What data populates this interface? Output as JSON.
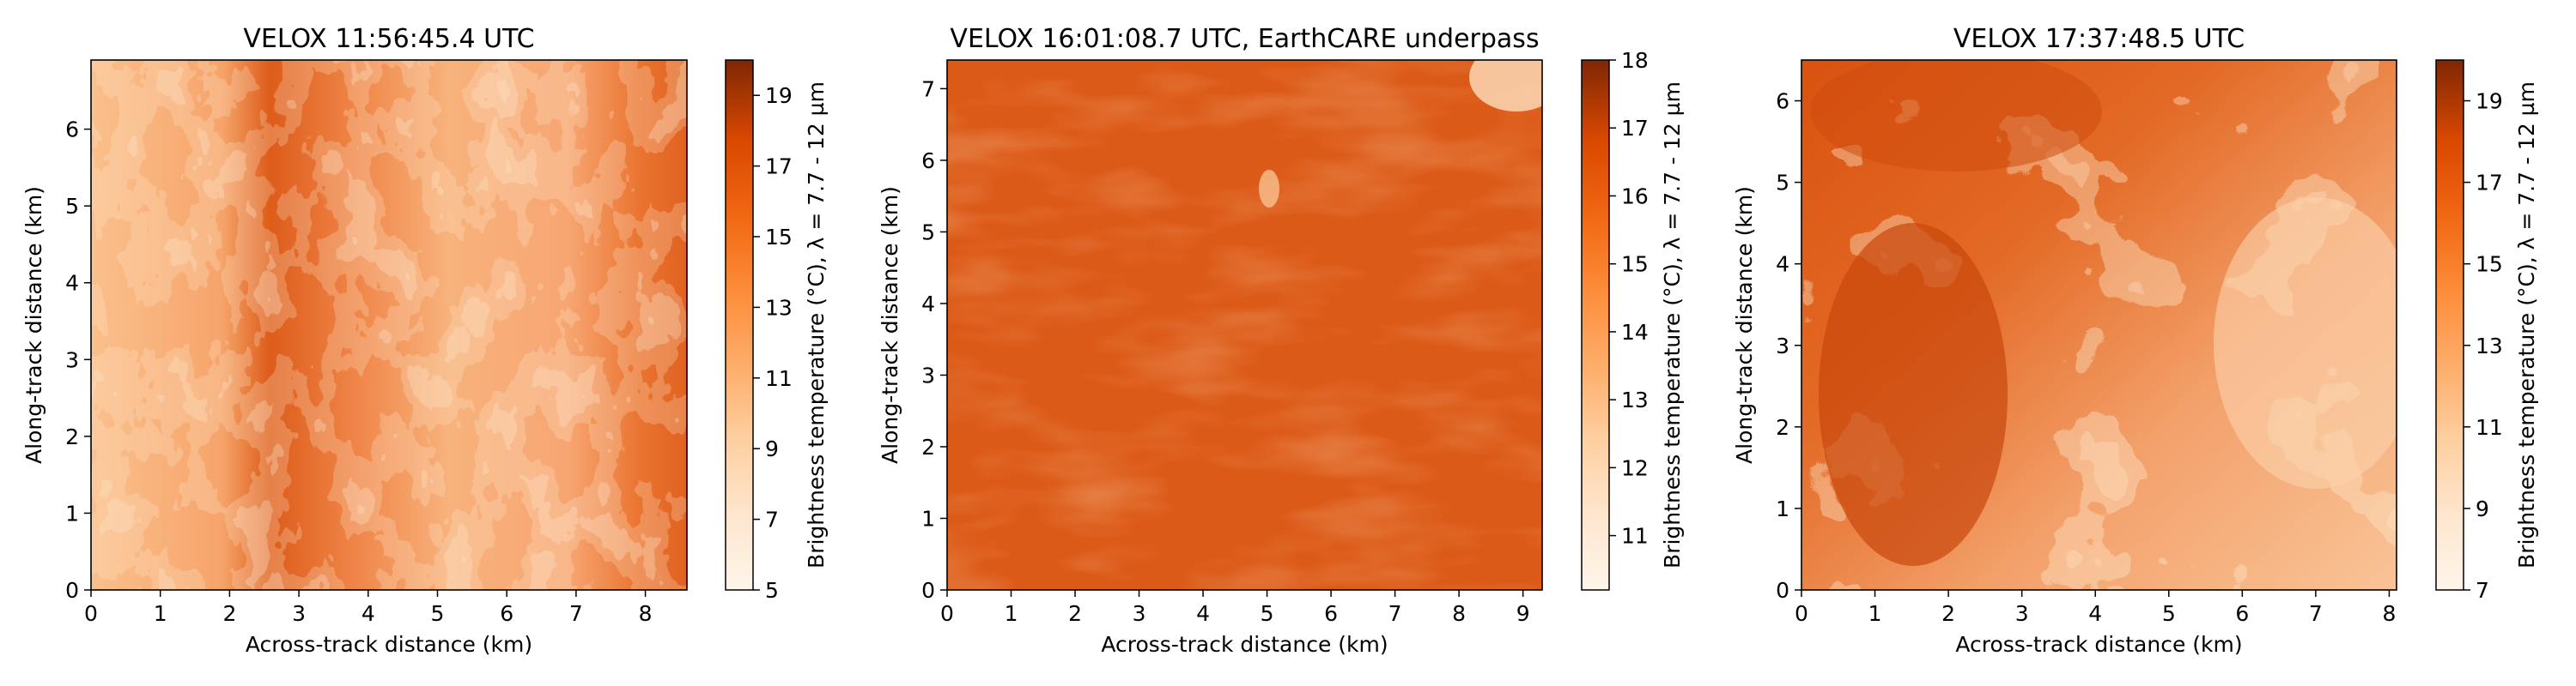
{
  "chart_data": [
    {
      "type": "heatmap",
      "title": "VELOX 11:56:45.4 UTC",
      "xlabel": "Across-track distance (km)",
      "ylabel": "Along-track distance (km)",
      "xlim": [
        0,
        8.6
      ],
      "ylim": [
        0,
        6.9
      ],
      "xticks": [
        "0",
        "1",
        "2",
        "3",
        "4",
        "5",
        "6",
        "7",
        "8"
      ],
      "yticks": [
        "0",
        "1",
        "2",
        "3",
        "4",
        "5",
        "6"
      ],
      "colorbar": {
        "label": "Brightness temperature (°C), λ = 7.7 - 12 µm",
        "range": [
          5,
          20
        ],
        "ticks": [
          "5",
          "7",
          "9",
          "11",
          "13",
          "15",
          "17",
          "19"
        ],
        "colormap": "Oranges"
      }
    },
    {
      "type": "heatmap",
      "title": "VELOX 16:01:08.7 UTC, EarthCARE underpass",
      "xlabel": "Across-track distance (km)",
      "ylabel": "Along-track distance (km)",
      "xlim": [
        0,
        9.3
      ],
      "ylim": [
        0,
        7.4
      ],
      "xticks": [
        "0",
        "1",
        "2",
        "3",
        "4",
        "5",
        "6",
        "7",
        "8",
        "9"
      ],
      "yticks": [
        "0",
        "1",
        "2",
        "3",
        "4",
        "5",
        "6",
        "7"
      ],
      "colorbar": {
        "label": "Brightness temperature (°C), λ = 7.7 - 12 µm",
        "range": [
          10.2,
          18
        ],
        "ticks": [
          "11",
          "12",
          "13",
          "14",
          "15",
          "16",
          "17",
          "18"
        ],
        "colormap": "Oranges"
      }
    },
    {
      "type": "heatmap",
      "title": "VELOX 17:37:48.5 UTC",
      "xlabel": "Across-track distance (km)",
      "ylabel": "Along-track distance (km)",
      "xlim": [
        0,
        8.1
      ],
      "ylim": [
        0,
        6.5
      ],
      "xticks": [
        "0",
        "1",
        "2",
        "3",
        "4",
        "5",
        "6",
        "7",
        "8"
      ],
      "yticks": [
        "0",
        "1",
        "2",
        "3",
        "4",
        "5",
        "6"
      ],
      "colorbar": {
        "label": "Brightness temperature (°C), λ = 7.7 - 12 µm",
        "range": [
          7,
          20
        ],
        "ticks": [
          "7",
          "9",
          "11",
          "13",
          "15",
          "17",
          "19"
        ],
        "colormap": "Oranges"
      }
    }
  ]
}
